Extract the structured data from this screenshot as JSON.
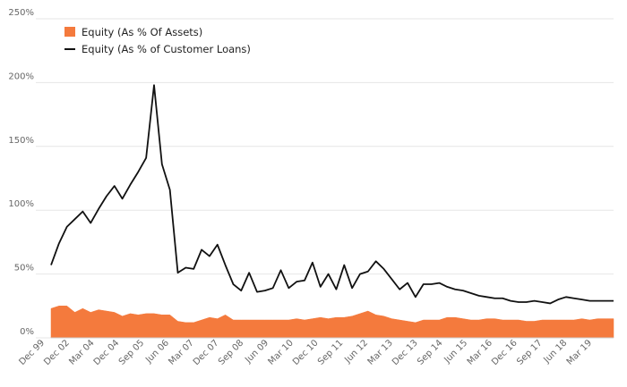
{
  "chart_data": {
    "type": "area",
    "title": "",
    "xlabel": "",
    "ylabel": "",
    "ylim": [
      0,
      250
    ],
    "y_tick_labels": [
      "0%",
      "50%",
      "100%",
      "150%",
      "200%",
      "250%"
    ],
    "grid": true,
    "legend_position": "top-left",
    "x_tick_labels": [
      "Dec 99",
      "Dec 02",
      "Mar 04",
      "Dec 04",
      "Sep 05",
      "Jun 06",
      "Mar 07",
      "Dec 07",
      "Sep 08",
      "Jun 09",
      "Mar 10",
      "Dec 10",
      "Sep 11",
      "Jun 12",
      "Mar 13",
      "Dec 13",
      "Sep 14",
      "Jun 15",
      "Mar 16",
      "Dec 16",
      "Sep 17",
      "Jun 18",
      "Mar 19"
    ],
    "series": [
      {
        "name": "Equity (As % Of Assets)",
        "type": "area",
        "color": "#f47a3d",
        "values": [
          23,
          25,
          25,
          20,
          23,
          20,
          22,
          21,
          20,
          17,
          19,
          18,
          19,
          19,
          18,
          18,
          13,
          12,
          12,
          14,
          16,
          15,
          18,
          14,
          14,
          14,
          14,
          14,
          14,
          14,
          14,
          15,
          14,
          15,
          16,
          15,
          16,
          16,
          17,
          19,
          21,
          18,
          17,
          15,
          14,
          13,
          12,
          14,
          14,
          14,
          16,
          16,
          15,
          14,
          14,
          15,
          15,
          14,
          14,
          14,
          13,
          13,
          14,
          14,
          14,
          14,
          14,
          15,
          14,
          15,
          15,
          15
        ]
      },
      {
        "name": "Equity (As % of Customer Loans)",
        "type": "line",
        "color": "#111111",
        "values": [
          57,
          74,
          87,
          93,
          99,
          90,
          101,
          111,
          119,
          109,
          120,
          130,
          141,
          198,
          136,
          116,
          51,
          55,
          54,
          69,
          64,
          73,
          57,
          42,
          37,
          51,
          36,
          37,
          39,
          53,
          39,
          44,
          45,
          59,
          40,
          50,
          38,
          57,
          39,
          50,
          52,
          60,
          54,
          46,
          38,
          43,
          32,
          42,
          42,
          43,
          40,
          38,
          37,
          35,
          33,
          32,
          31,
          31,
          29,
          28,
          28,
          29,
          28,
          27,
          30,
          32,
          31,
          30,
          29,
          29,
          29,
          29
        ]
      }
    ]
  }
}
